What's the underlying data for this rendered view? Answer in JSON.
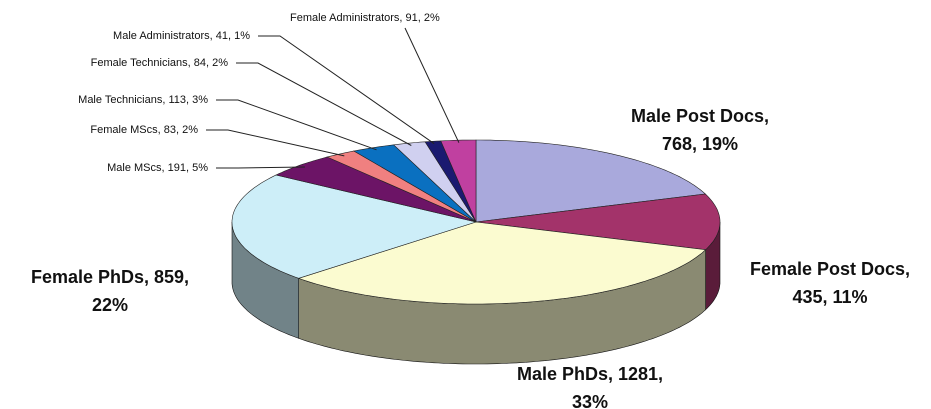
{
  "chart_data": {
    "type": "pie",
    "style": "3d",
    "categories": [
      "Male Post Docs",
      "Female Post Docs",
      "Male PhDs",
      "Female PhDs",
      "Male MScs",
      "Female MScs",
      "Male Technicians",
      "Female Technicians",
      "Male Administrators",
      "Female Administrators"
    ],
    "values": [
      768,
      435,
      1281,
      859,
      191,
      83,
      113,
      84,
      41,
      91
    ],
    "value_labels": [
      [
        "Male Post Docs,",
        "768, 19%"
      ],
      [
        "Female Post Docs,",
        "435, 11%"
      ],
      [
        "Male PhDs, 1281,",
        "33%"
      ],
      [
        "Female PhDs, 859,",
        "22%"
      ],
      [
        "Male MScs, 191, 5%"
      ],
      [
        "Female MScs, 83, 2%"
      ],
      [
        "Male Technicians, 113, 3%"
      ],
      [
        "Female Technicians, 84, 2%"
      ],
      [
        "Male Administrators, 41, 1%"
      ],
      [
        "Female Administrators, 91, 2%"
      ]
    ],
    "colors": [
      "#a9a9dc",
      "#a3336a",
      "#fbfbd0",
      "#cdeef8",
      "#6c1466",
      "#f08080",
      "#0a70c0",
      "#d0d0f0",
      "#1a1a70",
      "#c040a0"
    ]
  }
}
